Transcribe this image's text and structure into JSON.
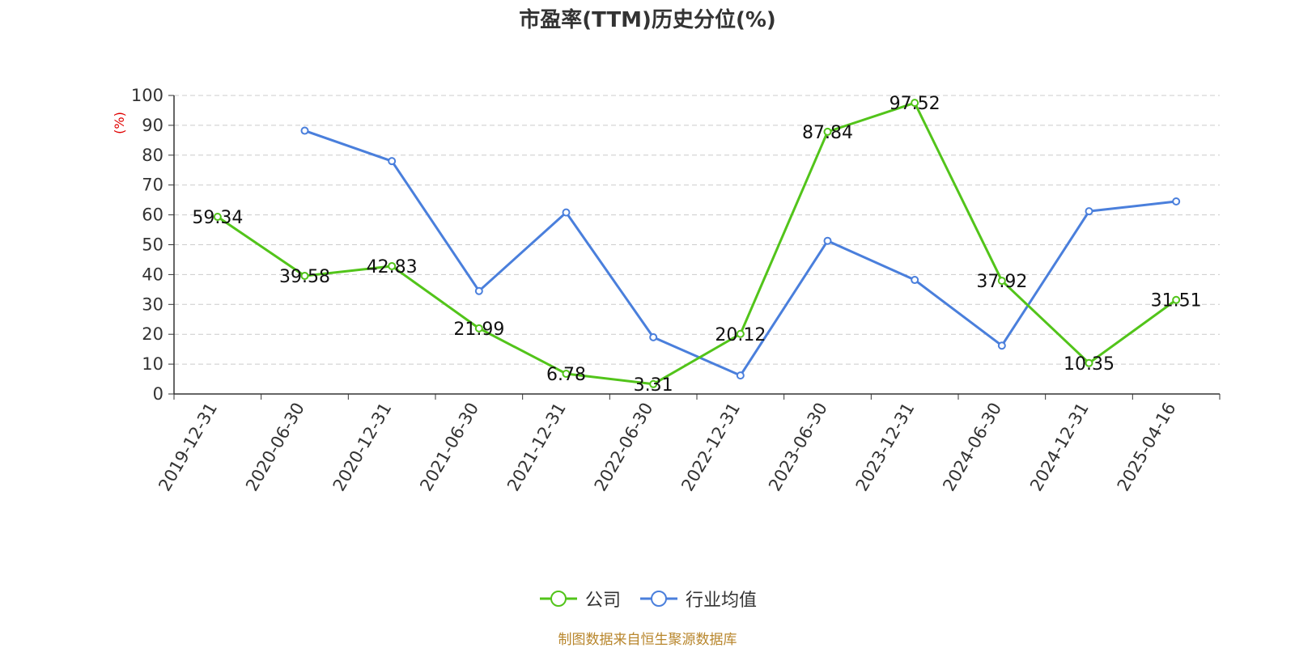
{
  "footer": "制图数据来自恒生聚源数据库",
  "chart_data": {
    "type": "line",
    "title": "市盈率(TTM)历史分位(%)",
    "ylabel": "(%)",
    "xlabel": "",
    "ylim": [
      0,
      100
    ],
    "yticks": [
      0,
      10,
      20,
      30,
      40,
      50,
      60,
      70,
      80,
      90,
      100
    ],
    "grid": true,
    "legend_position": "bottom",
    "categories": [
      "2019-12-31",
      "2020-06-30",
      "2020-12-31",
      "2021-06-30",
      "2021-12-31",
      "2022-06-30",
      "2022-12-31",
      "2023-06-30",
      "2023-12-31",
      "2024-06-30",
      "2024-12-31",
      "2025-04-16"
    ],
    "series": [
      {
        "name": "公司",
        "color": "#52c41a",
        "show_labels": true,
        "values": [
          59.34,
          39.58,
          42.83,
          21.99,
          6.78,
          3.31,
          20.12,
          87.84,
          97.52,
          37.92,
          10.35,
          31.51
        ]
      },
      {
        "name": "行业均值",
        "color": "#4a7fdc",
        "show_labels": false,
        "values": [
          null,
          88.2,
          78.0,
          34.5,
          60.8,
          19.0,
          6.2,
          51.3,
          38.2,
          16.2,
          61.2,
          64.5
        ]
      }
    ]
  }
}
